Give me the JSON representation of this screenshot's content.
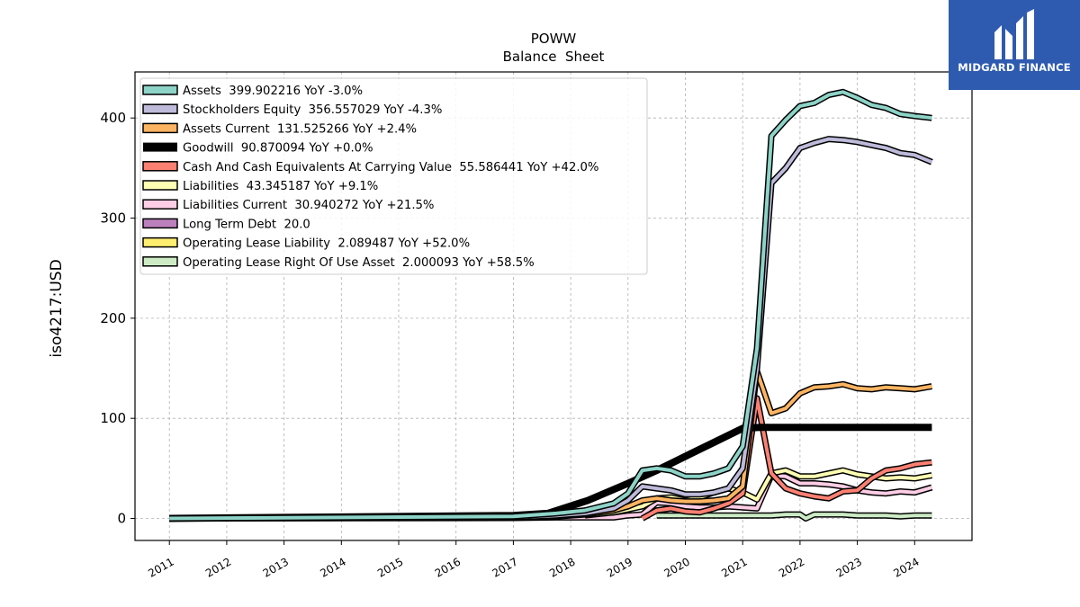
{
  "logo": {
    "text": "MIDGARD FINANCE",
    "bg_color": "#2e5bb0"
  },
  "chart_data": {
    "type": "line",
    "title": "POWW",
    "subtitle": "Balance  Sheet",
    "xlabel": "",
    "ylabel": "iso4217:USD",
    "ylim": [
      -22,
      446
    ],
    "xlim": [
      2010.4,
      2025.0
    ],
    "yticks": [
      0,
      100,
      200,
      300,
      400
    ],
    "xticks": [
      "2011",
      "2012",
      "2013",
      "2014",
      "2015",
      "2016",
      "2017",
      "2018",
      "2019",
      "2020",
      "2021",
      "2022",
      "2023",
      "2024"
    ],
    "grid": true,
    "legend_position": "top-left",
    "series": [
      {
        "name": "Assets  399.902216 YoY -3.0%",
        "color": "#8dd3c7",
        "width": 4,
        "x": [
          2011.0,
          2017.0,
          2017.75,
          2018.25,
          2018.75,
          2019.0,
          2019.25,
          2019.5,
          2019.75,
          2020.0,
          2020.25,
          2020.5,
          2020.75,
          2021.0,
          2021.25,
          2021.5,
          2021.75,
          2022.0,
          2022.25,
          2022.5,
          2022.75,
          2023.0,
          2023.25,
          2023.5,
          2023.75,
          2024.0,
          2024.3
        ],
        "y": [
          0,
          2,
          5,
          8,
          15,
          25,
          48,
          50,
          48,
          42,
          42,
          45,
          50,
          72,
          170,
          382,
          398,
          412,
          415,
          423,
          426,
          420,
          413,
          410,
          404,
          402,
          400
        ]
      },
      {
        "name": "Stockholders Equity  356.557029 YoY -4.3%",
        "color": "#bebada",
        "width": 4,
        "x": [
          2011.0,
          2017.0,
          2017.75,
          2018.25,
          2018.75,
          2019.0,
          2019.25,
          2019.5,
          2019.75,
          2020.0,
          2020.25,
          2020.5,
          2020.75,
          2021.0,
          2021.25,
          2021.5,
          2021.75,
          2022.0,
          2022.25,
          2022.5,
          2022.75,
          2023.0,
          2023.25,
          2023.5,
          2023.75,
          2024.0,
          2024.3
        ],
        "y": [
          0,
          1,
          3,
          5,
          10,
          18,
          32,
          30,
          28,
          24,
          24,
          26,
          30,
          50,
          150,
          335,
          350,
          370,
          375,
          379,
          378,
          376,
          373,
          370,
          365,
          363,
          356
        ]
      },
      {
        "name": "Assets Current  131.525266 YoY +2.4%",
        "color": "#fdb462",
        "width": 4,
        "x": [
          2011.0,
          2017.0,
          2017.75,
          2018.25,
          2018.75,
          2019.0,
          2019.25,
          2019.5,
          2019.75,
          2020.0,
          2020.25,
          2020.5,
          2020.75,
          2021.0,
          2021.25,
          2021.5,
          2021.75,
          2022.0,
          2022.25,
          2022.5,
          2022.75,
          2023.0,
          2023.25,
          2023.5,
          2023.75,
          2024.0,
          2024.3
        ],
        "y": [
          0,
          1,
          2,
          4,
          8,
          12,
          18,
          20,
          18,
          17,
          17,
          18,
          20,
          32,
          147,
          105,
          110,
          125,
          131,
          132,
          134,
          130,
          129,
          131,
          130,
          129,
          132
        ]
      },
      {
        "name": "Goodwill  90.870094 YoY +0.0%",
        "color": "#000000",
        "width": 8,
        "x": [
          2011.0,
          2017.0,
          2017.6,
          2018.3,
          2019.0,
          2019.5,
          2020.0,
          2020.5,
          2021.0,
          2021.3,
          2021.75,
          2022.0,
          2022.5,
          2023.0,
          2023.5,
          2024.0,
          2024.3
        ],
        "y": [
          0,
          3,
          5,
          18,
          35,
          48,
          62,
          76,
          90,
          91,
          91,
          91,
          91,
          91,
          91,
          91,
          91
        ]
      },
      {
        "name": "Cash And Cash Equivalents At Carrying Value  55.586441 YoY +42.0%",
        "color": "#fb8072",
        "width": 4,
        "x": [
          2019.25,
          2019.5,
          2019.75,
          2020.0,
          2020.25,
          2020.5,
          2020.75,
          2021.0,
          2021.25,
          2021.5,
          2021.75,
          2022.0,
          2022.25,
          2022.5,
          2022.75,
          2023.0,
          2023.25,
          2023.5,
          2023.75,
          2024.0,
          2024.3
        ],
        "y": [
          0,
          8,
          10,
          7,
          6,
          10,
          15,
          25,
          120,
          45,
          30,
          25,
          22,
          20,
          27,
          28,
          40,
          48,
          50,
          54,
          56
        ]
      },
      {
        "name": "Liabilities  43.345187 YoY +9.1%",
        "color": "#ffffb3",
        "width": 4,
        "x": [
          2018.25,
          2018.75,
          2019.0,
          2019.25,
          2019.5,
          2019.75,
          2020.0,
          2020.25,
          2020.5,
          2020.75,
          2021.0,
          2021.25,
          2021.5,
          2021.75,
          2022.0,
          2022.25,
          2022.5,
          2022.75,
          2023.0,
          2023.25,
          2023.5,
          2023.75,
          2024.0,
          2024.3
        ],
        "y": [
          3,
          6,
          9,
          12,
          20,
          21,
          18,
          21,
          26,
          30,
          26,
          19,
          45,
          48,
          42,
          42,
          45,
          48,
          44,
          42,
          40,
          41,
          40,
          43
        ]
      },
      {
        "name": "Liabilities Current  30.940272 YoY +21.5%",
        "color": "#fccde5",
        "width": 4,
        "x": [
          2011.0,
          2017.0,
          2017.75,
          2018.25,
          2018.75,
          2019.0,
          2019.25,
          2019.5,
          2019.75,
          2020.0,
          2020.25,
          2020.5,
          2020.75,
          2021.0,
          2021.25,
          2021.5,
          2021.75,
          2022.0,
          2022.25,
          2022.5,
          2022.75,
          2023.0,
          2023.25,
          2023.5,
          2023.75,
          2024.0,
          2024.3
        ],
        "y": [
          0,
          0.5,
          1,
          1,
          1,
          3,
          4,
          16,
          15,
          12,
          11,
          11,
          12,
          11,
          10,
          43,
          42,
          35,
          35,
          34,
          32,
          28,
          26,
          25,
          27,
          26,
          31
        ]
      },
      {
        "name": "Long Term Debt  20.0",
        "color": "#bc80bd",
        "width": 4,
        "x": [],
        "y": []
      },
      {
        "name": "Operating Lease Liability  2.089487 YoY +52.0%",
        "color": "#ffed6f",
        "width": 4,
        "x": [],
        "y": []
      },
      {
        "name": "Operating Lease Right Of Use Asset  2.000093 YoY +58.5%",
        "color": "#ccebc5",
        "width": 4,
        "x": [
          2019.5,
          2019.75,
          2020.0,
          2020.25,
          2020.5,
          2020.75,
          2021.0,
          2021.25,
          2021.5,
          2021.75,
          2022.0,
          2022.1,
          2022.25,
          2022.5,
          2022.75,
          2023.0,
          2023.25,
          2023.5,
          2023.75,
          2024.0,
          2024.3
        ],
        "y": [
          3,
          3,
          3,
          3,
          3,
          3,
          3,
          3,
          3,
          4,
          4,
          0,
          4,
          4,
          4,
          3,
          3,
          3,
          2,
          3,
          3
        ]
      }
    ]
  }
}
